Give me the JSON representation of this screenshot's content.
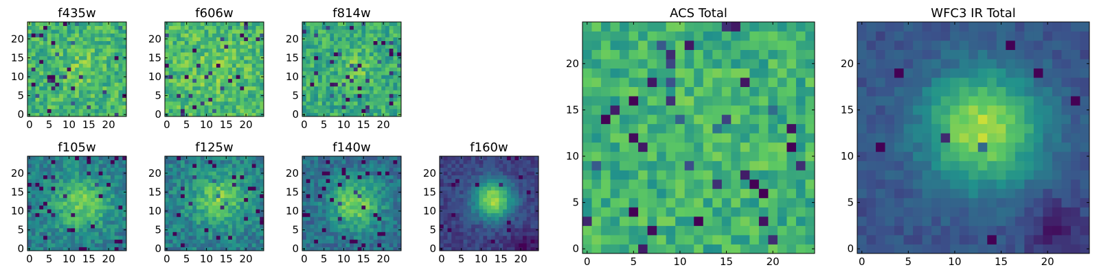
{
  "figure": {
    "background": "#ffffff",
    "colormap": "viridis",
    "colormap_stops": [
      "#440154",
      "#3b528b",
      "#21918c",
      "#5ec962",
      "#fde725"
    ]
  },
  "chart_data": [
    {
      "type": "heatmap",
      "title": "f435w",
      "grid_size": 25,
      "x_ticks": [
        0,
        5,
        10,
        15,
        20
      ],
      "y_ticks": [
        0,
        5,
        10,
        15,
        20
      ],
      "xlim": [
        0,
        25
      ],
      "ylim": [
        0,
        25
      ],
      "origin": "lower",
      "model": {
        "kind": "noise",
        "seed": 11,
        "peak": [
          13,
          12
        ],
        "sigma": 4.0,
        "amp": 0.08,
        "base": 0.66,
        "noise": 0.16,
        "dip_prob": 0.05
      }
    },
    {
      "type": "heatmap",
      "title": "f606w",
      "grid_size": 25,
      "x_ticks": [
        0,
        5,
        10,
        15,
        20
      ],
      "y_ticks": [
        0,
        5,
        10,
        15,
        20
      ],
      "xlim": [
        0,
        25
      ],
      "ylim": [
        0,
        25
      ],
      "origin": "lower",
      "model": {
        "kind": "noise",
        "seed": 23,
        "peak": [
          12,
          12
        ],
        "sigma": 4.0,
        "amp": 0.08,
        "base": 0.68,
        "noise": 0.16,
        "dip_prob": 0.05
      }
    },
    {
      "type": "heatmap",
      "title": "f814w",
      "grid_size": 25,
      "x_ticks": [
        0,
        5,
        10,
        15,
        20
      ],
      "y_ticks": [
        0,
        5,
        10,
        15,
        20
      ],
      "xlim": [
        0,
        25
      ],
      "ylim": [
        0,
        25
      ],
      "origin": "lower",
      "model": {
        "kind": "noise",
        "seed": 37,
        "peak": [
          13,
          12
        ],
        "sigma": 3.0,
        "amp": 0.12,
        "base": 0.62,
        "noise": 0.16,
        "dip_prob": 0.06
      }
    },
    {
      "type": "heatmap",
      "title": "f105w",
      "grid_size": 25,
      "x_ticks": [
        0,
        5,
        10,
        15,
        20
      ],
      "y_ticks": [
        0,
        5,
        10,
        15,
        20
      ],
      "xlim": [
        0,
        25
      ],
      "ylim": [
        0,
        25
      ],
      "origin": "lower",
      "model": {
        "kind": "source",
        "seed": 41,
        "peak": [
          13,
          12
        ],
        "sigma": 5.0,
        "amp": 0.35,
        "base": 0.42,
        "noise": 0.13,
        "dip_prob": 0.05
      }
    },
    {
      "type": "heatmap",
      "title": "f125w",
      "grid_size": 25,
      "x_ticks": [
        0,
        5,
        10,
        15,
        20
      ],
      "y_ticks": [
        0,
        5,
        10,
        15,
        20
      ],
      "xlim": [
        0,
        25
      ],
      "ylim": [
        0,
        25
      ],
      "origin": "lower",
      "model": {
        "kind": "source",
        "seed": 53,
        "peak": [
          13,
          13
        ],
        "sigma": 5.0,
        "amp": 0.35,
        "base": 0.42,
        "noise": 0.13,
        "dip_prob": 0.05
      }
    },
    {
      "type": "heatmap",
      "title": "f140w",
      "grid_size": 25,
      "x_ticks": [
        0,
        5,
        10,
        15,
        20
      ],
      "y_ticks": [
        0,
        5,
        10,
        15,
        20
      ],
      "xlim": [
        0,
        25
      ],
      "ylim": [
        0,
        25
      ],
      "origin": "lower",
      "model": {
        "kind": "source",
        "seed": 67,
        "peak": [
          13,
          12
        ],
        "sigma": 4.5,
        "amp": 0.45,
        "base": 0.36,
        "noise": 0.12,
        "dip_prob": 0.05
      }
    },
    {
      "type": "heatmap",
      "title": "f160w",
      "grid_size": 25,
      "x_ticks": [
        0,
        5,
        10,
        15,
        20
      ],
      "y_ticks": [
        0,
        5,
        10,
        15,
        20
      ],
      "xlim": [
        0,
        25
      ],
      "ylim": [
        0,
        25
      ],
      "origin": "lower",
      "model": {
        "kind": "source",
        "seed": 79,
        "peak": [
          13,
          13
        ],
        "sigma": 3.6,
        "amp": 0.66,
        "base": 0.2,
        "noise": 0.07,
        "dip_prob": 0.02,
        "dark_corner": [
          21,
          1
        ]
      }
    },
    {
      "type": "heatmap",
      "title": "ACS Total",
      "grid_size": 25,
      "x_ticks": [
        0,
        5,
        10,
        15,
        20
      ],
      "y_ticks": [
        0,
        5,
        10,
        15,
        20
      ],
      "xlim": [
        0,
        25
      ],
      "ylim": [
        0,
        25
      ],
      "origin": "lower",
      "model": {
        "kind": "noise",
        "seed": 97,
        "peak": [
          13,
          12
        ],
        "sigma": 4.0,
        "amp": 0.06,
        "base": 0.64,
        "noise": 0.15,
        "dip_prob": 0.06
      }
    },
    {
      "type": "heatmap",
      "title": "WFC3 IR Total",
      "grid_size": 25,
      "x_ticks": [
        0,
        5,
        10,
        15,
        20
      ],
      "y_ticks": [
        0,
        5,
        10,
        15,
        20
      ],
      "xlim": [
        0,
        25
      ],
      "ylim": [
        0,
        25
      ],
      "origin": "lower",
      "model": {
        "kind": "source",
        "seed": 113,
        "peak": [
          13,
          13
        ],
        "sigma": 4.3,
        "amp": 0.62,
        "base": 0.26,
        "noise": 0.06,
        "dip_prob": 0.02,
        "dark_corner": [
          21,
          2
        ]
      }
    }
  ]
}
